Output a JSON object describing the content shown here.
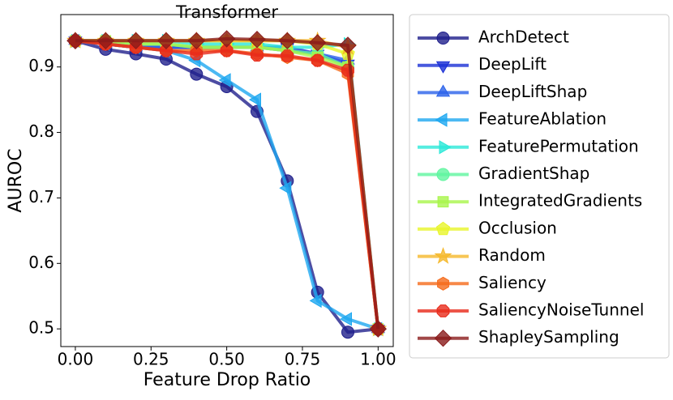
{
  "chart_data": {
    "type": "line",
    "title": "Transformer",
    "x_label": "Feature Drop Ratio",
    "y_label": "AUROC",
    "x": [
      0,
      0.1,
      0.2,
      0.3,
      0.4,
      0.5,
      0.6,
      0.7,
      0.8,
      0.9,
      1.0
    ],
    "xlim": [
      -0.048,
      1.05
    ],
    "ylim": [
      0.473,
      0.98
    ],
    "xticks": [
      {
        "value": 0,
        "label": "0.00"
      },
      {
        "value": 0.25,
        "label": "0.25"
      },
      {
        "value": 0.5,
        "label": "0.50"
      },
      {
        "value": 0.75,
        "label": "0.75"
      },
      {
        "value": 1,
        "label": "1.00"
      }
    ],
    "yticks": [
      0.5,
      0.6,
      0.7,
      0.8,
      0.9
    ],
    "legend": "outside-right",
    "series": [
      {
        "name": "ArchDetect",
        "color": "#20208c",
        "marker": "circle",
        "values": [
          0.94,
          0.927,
          0.92,
          0.912,
          0.889,
          0.87,
          0.832,
          0.726,
          0.556,
          0.495,
          0.5
        ]
      },
      {
        "name": "DeepLift",
        "color": "#1a2fd6",
        "marker": "triangle-down",
        "values": [
          0.94,
          0.935,
          0.93,
          0.93,
          0.93,
          0.93,
          0.93,
          0.93,
          0.92,
          0.905,
          0.5
        ]
      },
      {
        "name": "DeepLiftShap",
        "color": "#2a62ea",
        "marker": "triangle-up",
        "values": [
          0.94,
          0.935,
          0.93,
          0.93,
          0.93,
          0.93,
          0.93,
          0.925,
          0.92,
          0.91,
          0.5
        ]
      },
      {
        "name": "FeatureAblation",
        "color": "#1ea8f0",
        "marker": "triangle-left",
        "values": [
          0.94,
          0.935,
          0.93,
          0.925,
          0.91,
          0.88,
          0.85,
          0.715,
          0.543,
          0.515,
          0.5
        ]
      },
      {
        "name": "FeaturePermutation",
        "color": "#2be8d8",
        "marker": "triangle-right",
        "values": [
          0.94,
          0.94,
          0.94,
          0.94,
          0.935,
          0.935,
          0.935,
          0.93,
          0.93,
          0.935,
          0.5
        ]
      },
      {
        "name": "GradientShap",
        "color": "#5ff59f",
        "marker": "circle",
        "values": [
          0.94,
          0.94,
          0.935,
          0.935,
          0.93,
          0.93,
          0.93,
          0.925,
          0.92,
          0.9,
          0.5
        ]
      },
      {
        "name": "IntegratedGradients",
        "color": "#a8f54a",
        "marker": "square",
        "values": [
          0.94,
          0.94,
          0.935,
          0.935,
          0.93,
          0.93,
          0.93,
          0.925,
          0.915,
          0.9,
          0.5
        ]
      },
      {
        "name": "Occlusion",
        "color": "#e8f52a",
        "marker": "pentagon",
        "values": [
          0.94,
          0.94,
          0.94,
          0.94,
          0.94,
          0.94,
          0.94,
          0.94,
          0.935,
          0.92,
          0.5
        ]
      },
      {
        "name": "Random",
        "color": "#f5b82a",
        "marker": "star",
        "values": [
          0.94,
          0.94,
          0.94,
          0.94,
          0.94,
          0.94,
          0.94,
          0.94,
          0.94,
          0.93,
          0.5
        ]
      },
      {
        "name": "Saliency",
        "color": "#f56a1a",
        "marker": "hexagon",
        "values": [
          0.94,
          0.935,
          0.93,
          0.925,
          0.925,
          0.925,
          0.92,
          0.915,
          0.91,
          0.89,
          0.5
        ]
      },
      {
        "name": "SaliencyNoiseTunnel",
        "color": "#e82a1a",
        "marker": "octagon",
        "values": [
          0.94,
          0.935,
          0.93,
          0.925,
          0.92,
          0.925,
          0.918,
          0.917,
          0.91,
          0.895,
          0.5
        ]
      },
      {
        "name": "ShapleySampling",
        "color": "#8a1a1a",
        "marker": "diamond",
        "values": [
          0.94,
          0.94,
          0.94,
          0.94,
          0.94,
          0.943,
          0.942,
          0.94,
          0.937,
          0.933,
          0.5
        ]
      }
    ]
  }
}
